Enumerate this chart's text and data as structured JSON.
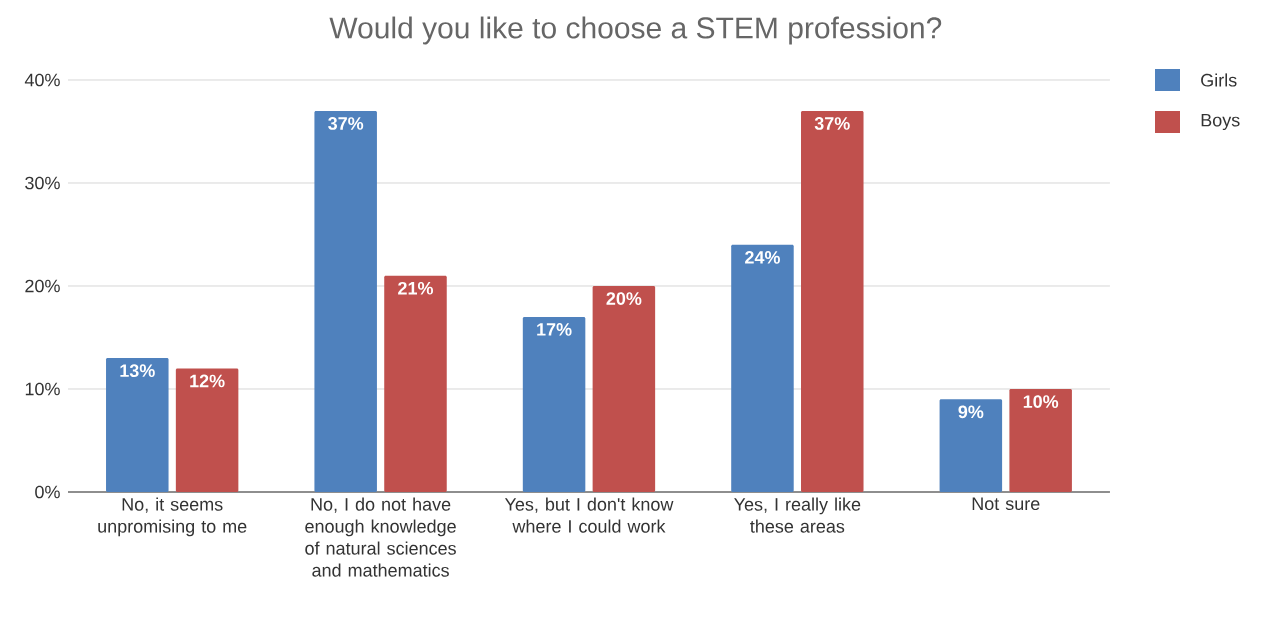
{
  "chart_data": {
    "type": "bar",
    "title": "Would you like to choose a STEM profession?",
    "categories": [
      "No, it seems unpromising to me",
      "No, I do not have enough knowledge of natural sciences and mathematics",
      "Yes, but I don't know where I could work",
      "Yes, I really like these areas",
      "Not sure"
    ],
    "series": [
      {
        "name": "Girls",
        "color": "#4f81bd",
        "values": [
          13,
          37,
          17,
          24,
          9
        ],
        "value_labels": [
          "13%",
          "37%",
          "17%",
          "24%",
          "9%"
        ]
      },
      {
        "name": "Boys",
        "color": "#c0504d",
        "values": [
          12,
          21,
          20,
          37,
          10
        ],
        "value_labels": [
          "12%",
          "21%",
          "20%",
          "37%",
          "10%"
        ]
      }
    ],
    "ylim": [
      0,
      40
    ],
    "yticks": [
      {
        "value": 0,
        "label": "0%"
      },
      {
        "value": 10,
        "label": "10%"
      },
      {
        "value": 20,
        "label": "20%"
      },
      {
        "value": 30,
        "label": "30%"
      },
      {
        "value": 40,
        "label": "40%"
      }
    ],
    "grid": "y",
    "legend": "top right"
  }
}
